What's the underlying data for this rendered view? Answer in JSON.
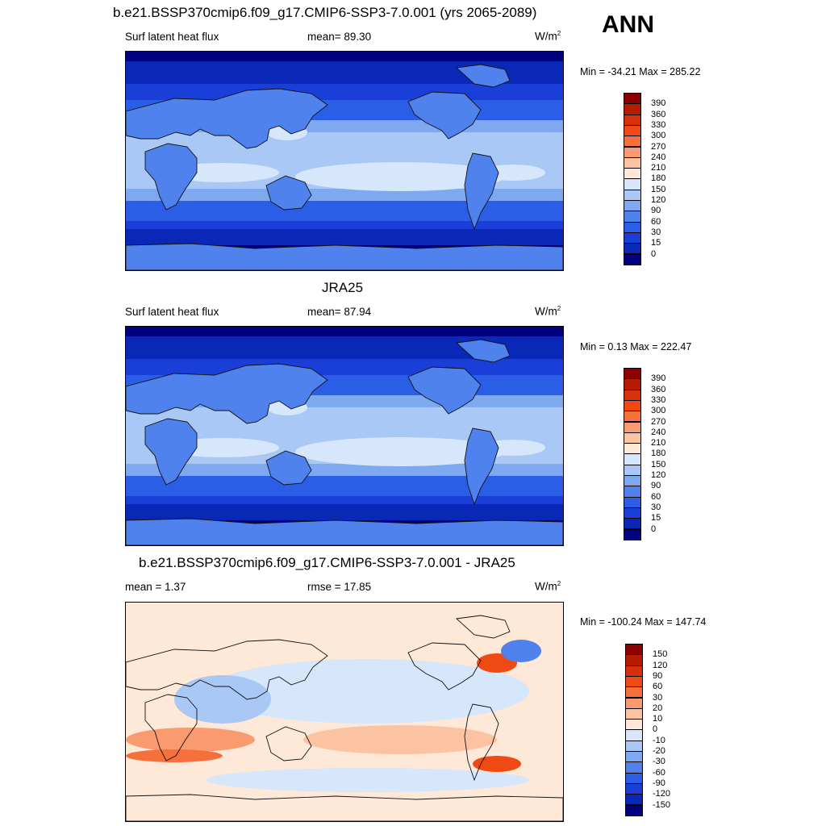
{
  "header": {
    "main_title": "b.e21.BSSP370cmip6.f09_g17.CMIP6-SSP3-7.0.001 (yrs 2065-2089)",
    "season": "ANN"
  },
  "panels": [
    {
      "title": "",
      "left_label": "Surf latent heat flux",
      "center_label": "mean=  89.30",
      "units_base": "W/m",
      "units_exp": "2",
      "minmax": "Min = -34.21 Max = 285.22"
    },
    {
      "title": "JRA25",
      "left_label": "Surf latent heat flux",
      "center_label": "mean=  87.94",
      "units_base": "W/m",
      "units_exp": "2",
      "minmax": "Min =   0.13 Max = 222.47"
    },
    {
      "title": "b.e21.BSSP370cmip6.f09_g17.CMIP6-SSP3-7.0.001 - JRA25",
      "left_label": "mean =   1.37",
      "center_label": "rmse =  17.85",
      "units_base": "W/m",
      "units_exp": "2",
      "minmax": "Min = -100.24 Max = 147.74"
    }
  ],
  "colorbars": {
    "field": {
      "labels": [
        "390",
        "360",
        "330",
        "300",
        "270",
        "240",
        "210",
        "180",
        "150",
        "120",
        "90",
        "60",
        "30",
        "15",
        "0"
      ],
      "colors": [
        "#8b0000",
        "#b41b00",
        "#d9300c",
        "#f04a14",
        "#f6703c",
        "#f99a6f",
        "#fcc3a2",
        "#fee8d8",
        "#d6e6fb",
        "#aac8f5",
        "#7ea9f0",
        "#4f82ec",
        "#2a5ee6",
        "#1a3fd8",
        "#0a28b8",
        "#000080"
      ]
    },
    "diff": {
      "labels": [
        "150",
        "120",
        "90",
        "60",
        "30",
        "20",
        "10",
        "0",
        "-10",
        "-20",
        "-30",
        "-60",
        "-90",
        "-120",
        "-150"
      ],
      "colors": [
        "#8b0000",
        "#b41b00",
        "#d9300c",
        "#f04a14",
        "#f6703c",
        "#f99a6f",
        "#fcc3a2",
        "#fee8d8",
        "#d6e6fb",
        "#aac8f5",
        "#7ea9f0",
        "#4f82ec",
        "#2a5ee6",
        "#1a3fd8",
        "#0a28b8",
        "#000080"
      ]
    }
  },
  "chart_data": [
    {
      "type": "heatmap",
      "title": "b.e21.BSSP370cmip6.f09_g17.CMIP6-SSP3-7.0.001 (yrs 2065-2089)",
      "variable": "Surf latent heat flux",
      "units": "W/m2",
      "mean": 89.3,
      "min": -34.21,
      "max": 285.22,
      "contour_levels": [
        0,
        15,
        30,
        60,
        90,
        120,
        150,
        180,
        210,
        240,
        270,
        300,
        330,
        360,
        390
      ]
    },
    {
      "type": "heatmap",
      "title": "JRA25",
      "variable": "Surf latent heat flux",
      "units": "W/m2",
      "mean": 87.94,
      "min": 0.13,
      "max": 222.47,
      "contour_levels": [
        0,
        15,
        30,
        60,
        90,
        120,
        150,
        180,
        210,
        240,
        270,
        300,
        330,
        360,
        390
      ]
    },
    {
      "type": "heatmap",
      "title": "b.e21.BSSP370cmip6.f09_g17.CMIP6-SSP3-7.0.001 - JRA25",
      "units": "W/m2",
      "mean": 1.37,
      "rmse": 17.85,
      "min": -100.24,
      "max": 147.74,
      "contour_levels": [
        -150,
        -120,
        -90,
        -60,
        -30,
        -20,
        -10,
        0,
        10,
        20,
        30,
        60,
        90,
        120,
        150
      ]
    }
  ]
}
